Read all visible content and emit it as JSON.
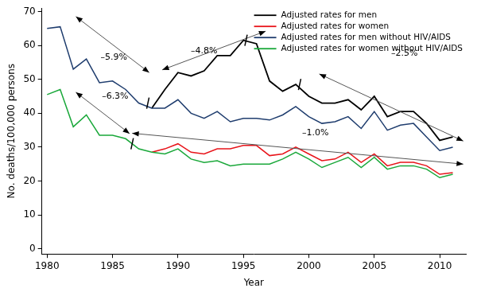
{
  "chart_data": {
    "type": "line",
    "x_label": "Year",
    "y_label": "No. deaths/100,000 persons",
    "x": [
      1980,
      1981,
      1982,
      1983,
      1984,
      1985,
      1986,
      1987,
      1988,
      1989,
      1990,
      1991,
      1992,
      1993,
      1994,
      1995,
      1996,
      1997,
      1998,
      1999,
      2000,
      2001,
      2002,
      2003,
      2004,
      2005,
      2006,
      2007,
      2008,
      2009,
      2010,
      2011
    ],
    "series": [
      {
        "name": "Adjusted rates for men",
        "color": "#000000",
        "values": [
          null,
          null,
          null,
          null,
          null,
          null,
          null,
          null,
          41.5,
          47,
          52,
          51,
          52.5,
          57,
          57,
          61.5,
          60.5,
          49.5,
          46.5,
          48.5,
          45,
          43,
          43,
          44,
          41,
          45,
          39,
          40.5,
          40.5,
          37,
          32,
          33
        ]
      },
      {
        "name": "Adjusted rates for women",
        "color": "#e8141a",
        "values": [
          null,
          null,
          null,
          null,
          null,
          null,
          null,
          null,
          28.5,
          29.5,
          31,
          28.5,
          28,
          29.5,
          29.5,
          30.5,
          30.5,
          27.5,
          28,
          30,
          28,
          26,
          26.5,
          28.5,
          25.5,
          28,
          24.5,
          25.5,
          25.5,
          24.5,
          22,
          22.5
        ]
      },
      {
        "name": "Adjusted rates for men without HIV/AIDS",
        "color": "#1f3d6e",
        "values": [
          65,
          65.5,
          53,
          56,
          49,
          49.5,
          47,
          43,
          41.5,
          41.5,
          44,
          40,
          38.5,
          40.5,
          37.5,
          38.5,
          38.5,
          38,
          39.5,
          42,
          39,
          37,
          37.5,
          39,
          35.5,
          40.5,
          35,
          36.5,
          37,
          33,
          29,
          30
        ]
      },
      {
        "name": "Adjusted rates for women without HIV/AIDS",
        "color": "#1aa83a",
        "values": [
          45.5,
          47,
          36,
          39.5,
          33.5,
          33.5,
          32.5,
          29.5,
          28.5,
          28,
          29.5,
          26.5,
          25.5,
          26,
          24.5,
          25,
          25,
          25,
          26.5,
          28.5,
          26.5,
          24,
          25.5,
          27,
          24,
          27,
          23.5,
          24.5,
          24.5,
          23.5,
          21,
          22
        ]
      }
    ],
    "xlim": [
      1979.6,
      2012
    ],
    "xticks": [
      1980,
      1985,
      1990,
      1995,
      2000,
      2005,
      2010
    ],
    "ylim": [
      -1.5,
      71
    ],
    "yticks": [
      0,
      10,
      20,
      30,
      40,
      50,
      60,
      70
    ],
    "grid": false,
    "legend": "upper right",
    "annotations": [
      {
        "text": "–5.9%",
        "x": 1985.1,
        "y": 56.4,
        "from": [
          1982.2,
          68.5
        ],
        "to": [
          1987.8,
          52
        ]
      },
      {
        "text": "–4.8%",
        "x": 1992,
        "y": 58.4,
        "from": [
          1988.8,
          52.8
        ],
        "to": [
          1996.7,
          64.2
        ]
      },
      {
        "text": "–2.5%",
        "x": 2007.3,
        "y": 57.6,
        "from": [
          2000.8,
          51.6
        ],
        "to": [
          2011.8,
          31.8
        ]
      },
      {
        "text": "–6.3%",
        "x": 1985.2,
        "y": 45,
        "from": [
          1982.2,
          46.2
        ],
        "to": [
          1986.3,
          34
        ]
      },
      {
        "text": "–1.0%",
        "x": 2000.5,
        "y": 34.2,
        "from": [
          1986.5,
          34.1
        ],
        "to": [
          2011.8,
          25
        ]
      }
    ],
    "joinpoints": [
      {
        "x": 1987.7,
        "y": 43
      },
      {
        "x": 1995.2,
        "y": 61.5
      },
      {
        "x": 1999.3,
        "y": 48.5
      },
      {
        "x": 1986.5,
        "y": 31
      }
    ]
  }
}
